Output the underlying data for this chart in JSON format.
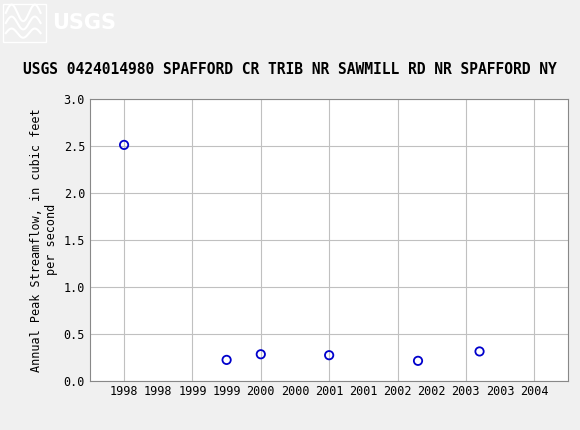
{
  "title": "USGS 0424014980 SPAFFORD CR TRIB NR SAWMILL RD NR SPAFFORD NY",
  "ylabel": "Annual Peak Streamflow, in cubic feet\nper second",
  "x_data": [
    1998.0,
    1999.5,
    2000.0,
    2001.0,
    2002.3,
    2003.2
  ],
  "y_data": [
    2.51,
    0.22,
    0.28,
    0.27,
    0.21,
    0.31
  ],
  "xlim": [
    1997.5,
    2004.5
  ],
  "ylim": [
    0.0,
    3.0
  ],
  "yticks": [
    0.0,
    0.5,
    1.0,
    1.5,
    2.0,
    2.5,
    3.0
  ],
  "xticks": [
    1998,
    1999,
    2000,
    2001,
    2002,
    2003,
    2004
  ],
  "marker_color": "#0000cc",
  "marker_size": 6,
  "grid_color": "#c0c0c0",
  "bg_color": "#f0f0f0",
  "plot_bg": "#ffffff",
  "header_color": "#006633",
  "title_fontsize": 10.5,
  "axis_label_fontsize": 8.5,
  "tick_fontsize": 8.5
}
